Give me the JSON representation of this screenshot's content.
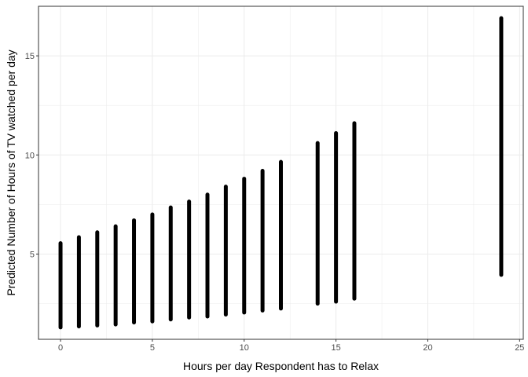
{
  "chart_data": {
    "type": "range-bar",
    "title": "",
    "xlabel": "Hours per day Respondent has to Relax",
    "ylabel": "Predicted Number of Hours of TV watched per day",
    "xlim": [
      -1.2,
      25.2
    ],
    "ylim": [
      0.7,
      17.5
    ],
    "x_ticks": [
      0,
      5,
      10,
      15,
      20,
      25
    ],
    "x_tick_labels": [
      "0",
      "5",
      "10",
      "15",
      "20",
      "25"
    ],
    "y_ticks": [
      5,
      10,
      15
    ],
    "y_tick_labels": [
      "5",
      "10",
      "15"
    ],
    "grid": true,
    "legend": "none",
    "bar_color": "#000000",
    "grid_color": "#ebebeb",
    "ranges": [
      {
        "x": 0,
        "low": 1.3,
        "high": 5.55
      },
      {
        "x": 1,
        "low": 1.35,
        "high": 5.85
      },
      {
        "x": 2,
        "low": 1.4,
        "high": 6.1
      },
      {
        "x": 3,
        "low": 1.45,
        "high": 6.4
      },
      {
        "x": 4,
        "low": 1.55,
        "high": 6.7
      },
      {
        "x": 5,
        "low": 1.6,
        "high": 7.0
      },
      {
        "x": 6,
        "low": 1.7,
        "high": 7.35
      },
      {
        "x": 7,
        "low": 1.8,
        "high": 7.65
      },
      {
        "x": 8,
        "low": 1.85,
        "high": 8.0
      },
      {
        "x": 9,
        "low": 1.95,
        "high": 8.4
      },
      {
        "x": 10,
        "low": 2.05,
        "high": 8.8
      },
      {
        "x": 11,
        "low": 2.15,
        "high": 9.2
      },
      {
        "x": 12,
        "low": 2.25,
        "high": 9.65
      },
      {
        "x": 14,
        "low": 2.5,
        "high": 10.6
      },
      {
        "x": 15,
        "low": 2.6,
        "high": 11.1
      },
      {
        "x": 16,
        "low": 2.75,
        "high": 11.6
      },
      {
        "x": 24,
        "low": 3.95,
        "high": 16.9
      }
    ]
  }
}
